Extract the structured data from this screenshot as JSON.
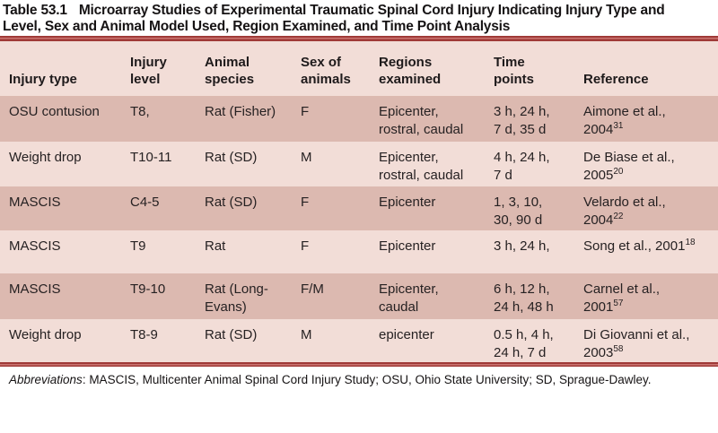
{
  "title": {
    "label": "Table 53.1",
    "text": "Microarray Studies of Experimental Traumatic Spinal Cord Injury Indicating Injury Type and\nLevel, Sex and Animal Model Used, Region Examined, and Time Point Analysis"
  },
  "table": {
    "columns": [
      "Injury type",
      "Injury\nlevel",
      "Animal\nspecies",
      "Sex of\nanimals",
      "Regions\nexamined",
      "Time\npoints",
      "Reference"
    ],
    "rows": [
      {
        "injury_type": "OSU contusion",
        "injury_level": "T8,",
        "animal_species": "Rat (Fisher)",
        "sex_of_animals": "F",
        "regions_examined": "Epicenter,\nrostral, caudal",
        "time_points": "3 h, 24 h,\n7 d, 35 d",
        "reference": "Aimone et al.,\n2004",
        "reference_superscript": "31"
      },
      {
        "injury_type": "Weight drop",
        "injury_level": "T10-11",
        "animal_species": "Rat (SD)",
        "sex_of_animals": "M",
        "regions_examined": "Epicenter,\nrostral, caudal",
        "time_points": "4 h, 24 h,\n7 d",
        "reference": "De Biase et al.,\n2005",
        "reference_superscript": "20"
      },
      {
        "injury_type": "MASCIS",
        "injury_level": "C4-5",
        "animal_species": "Rat (SD)",
        "sex_of_animals": "F",
        "regions_examined": "Epicenter",
        "time_points": "1, 3, 10,\n30, 90 d",
        "reference": "Velardo et al.,\n2004",
        "reference_superscript": "22"
      },
      {
        "injury_type": "MASCIS",
        "injury_level": "T9",
        "animal_species": "Rat",
        "sex_of_animals": "F",
        "regions_examined": "Epicenter",
        "time_points": "3 h, 24 h,",
        "reference": "Song et al., 2001",
        "reference_superscript": "18"
      },
      {
        "injury_type": "MASCIS",
        "injury_level": "T9-10",
        "animal_species": "Rat (Long-\nEvans)",
        "sex_of_animals": "F/M",
        "regions_examined": "Epicenter,\ncaudal",
        "time_points": "6 h, 12 h,\n24 h, 48 h",
        "reference": "Carnel et al.,\n2001",
        "reference_superscript": "57"
      },
      {
        "injury_type": "Weight drop",
        "injury_level": "T8-9",
        "animal_species": "Rat (SD)",
        "sex_of_animals": "M",
        "regions_examined": "epicenter",
        "time_points": "0.5 h, 4 h,\n24 h, 7 d",
        "reference": "Di Giovanni et al.,\n2003",
        "reference_superscript": "58"
      }
    ]
  },
  "footnote": {
    "label": "Abbreviations",
    "text": ": MASCIS, Multicenter Animal Spinal Cord Injury Study; OSU, Ohio State University; SD, Sprague-Dawley."
  },
  "colors": {
    "row_dark_pink": "#dcb9b0",
    "row_light_pink": "#f2ddd7",
    "rule_dark_red": "#a03a37",
    "rule_light_red": "#cb7572",
    "text": "#262122",
    "background": "#ffffff"
  }
}
